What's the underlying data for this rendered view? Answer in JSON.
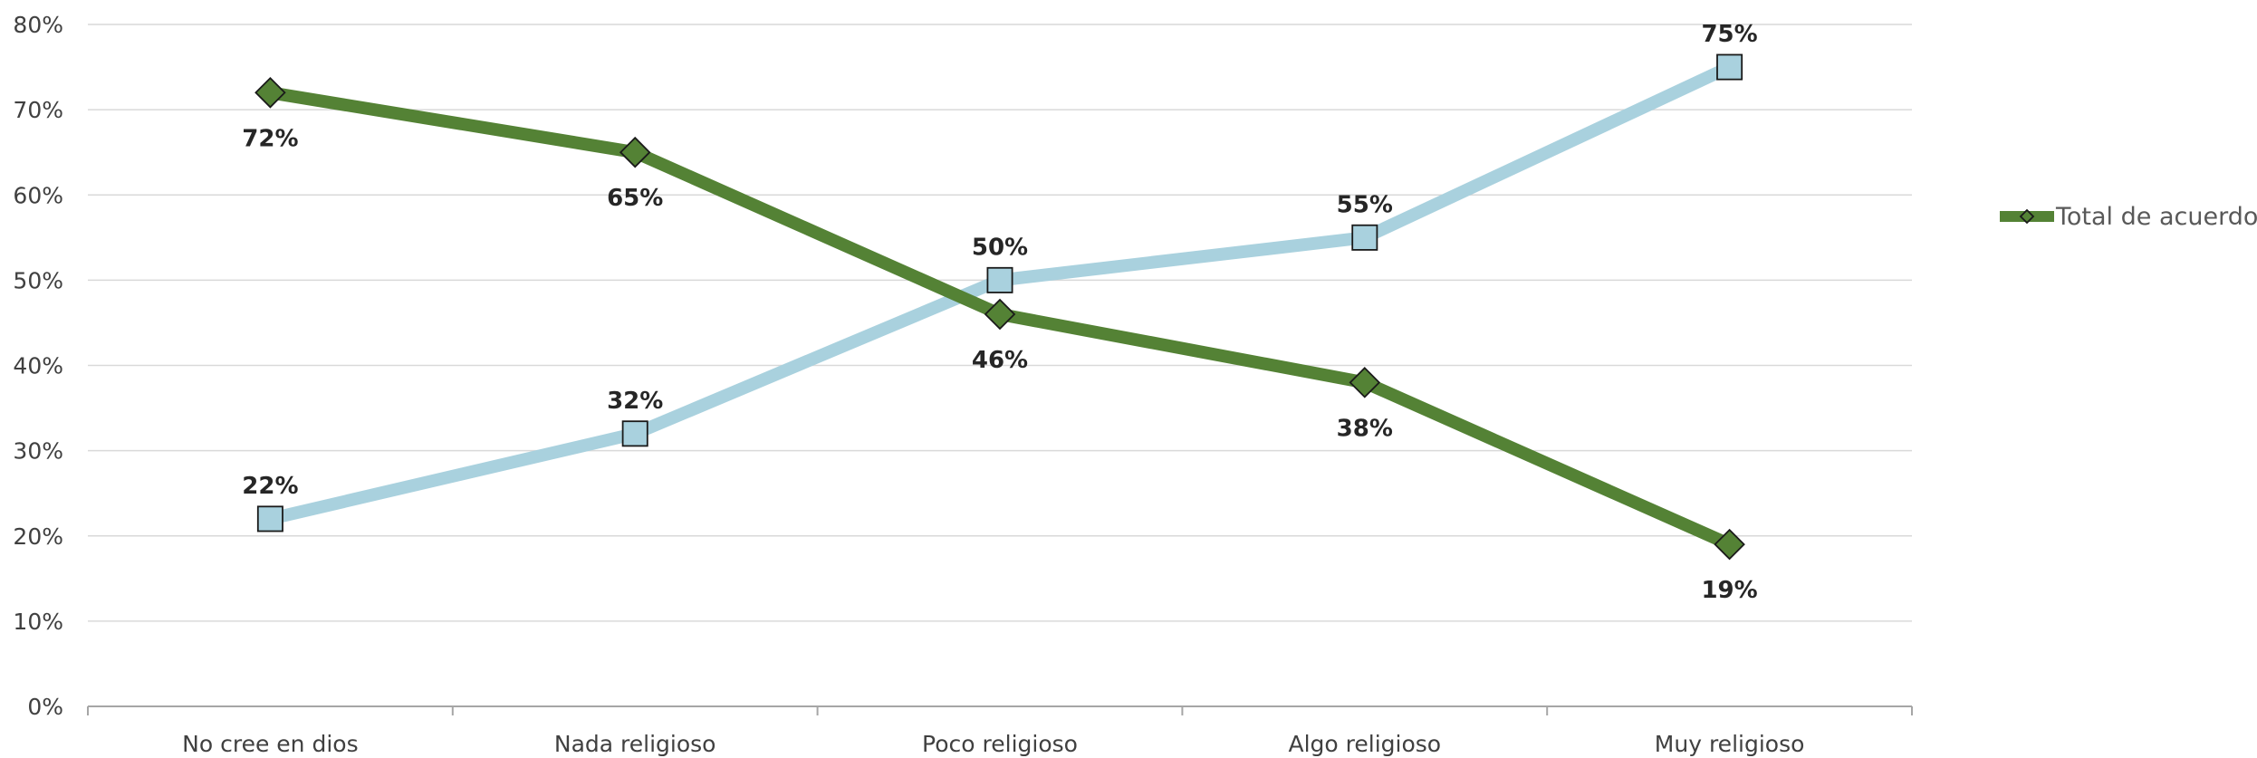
{
  "chart_data": {
    "type": "line",
    "categories": [
      "No cree en dios",
      "Nada religioso",
      "Poco religioso",
      "Algo religioso",
      "Muy religioso"
    ],
    "series": [
      {
        "name": "Total de acuerdo",
        "values": [
          72,
          65,
          46,
          38,
          19
        ],
        "labels": [
          "72%",
          "65%",
          "46%",
          "38%",
          "19%"
        ],
        "color": "#548235",
        "marker": "diamond",
        "label_position": "below"
      },
      {
        "values": [
          22,
          32,
          50,
          55,
          75
        ],
        "labels": [
          "22%",
          "32%",
          "50%",
          "55%",
          "75%"
        ],
        "color": "#A9D1DE",
        "marker": "square",
        "label_position": "above"
      }
    ],
    "ylim": [
      0,
      80
    ],
    "y_ticks": [
      0,
      10,
      20,
      30,
      40,
      50,
      60,
      70,
      80
    ],
    "y_tick_labels": [
      "0%",
      "10%",
      "20%",
      "30%",
      "40%",
      "50%",
      "60%",
      "70%",
      "80%"
    ],
    "grid": true,
    "legend_position": "right",
    "title": "",
    "xlabel": "",
    "ylabel": ""
  }
}
